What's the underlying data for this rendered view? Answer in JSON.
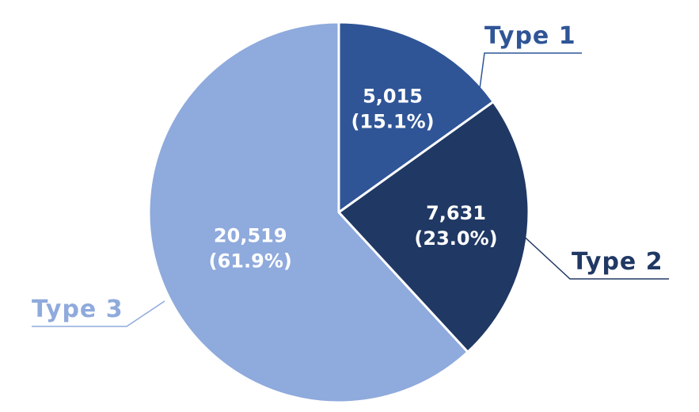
{
  "chart_data": {
    "type": "pie",
    "categories": [
      "Type 1",
      "Type 2",
      "Type 3"
    ],
    "values": [
      5015,
      7631,
      20519
    ],
    "value_labels": [
      "5,015",
      "7,631",
      "20,519"
    ],
    "percent_labels": [
      "(15.1%)",
      "(23.0%)",
      "(61.9%)"
    ],
    "colors": [
      "#2f5597",
      "#203864",
      "#8faadc"
    ],
    "label_colors": [
      "#2f5597",
      "#203864",
      "#8faadc"
    ],
    "start_angle": "12 o'clock",
    "direction": "clockwise",
    "legend": "leader-line callouts outside the pie"
  }
}
